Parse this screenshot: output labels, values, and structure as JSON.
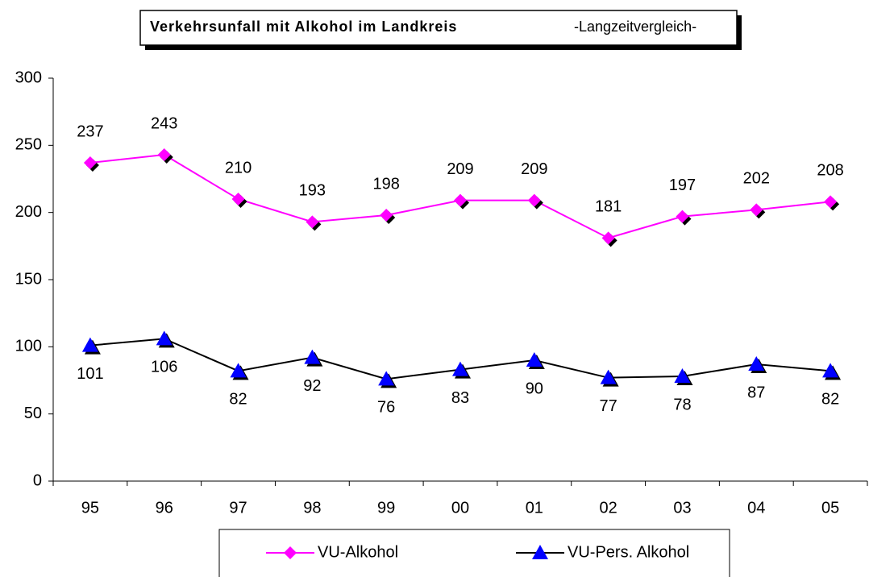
{
  "chart_data": {
    "type": "line",
    "title": "Verkehrsunfall mit Alkohol im Landkreis",
    "subtitle": "-Langzeitvergleich-",
    "categories": [
      "95",
      "96",
      "97",
      "98",
      "99",
      "00",
      "01",
      "02",
      "03",
      "04",
      "05"
    ],
    "series": [
      {
        "name": "VU-Alkohol",
        "color": "#ff00ff",
        "line_color": "#ff00ff",
        "marker": "diamond",
        "values": [
          237,
          243,
          210,
          193,
          198,
          209,
          209,
          181,
          197,
          202,
          208
        ]
      },
      {
        "name": "VU-Pers. Alkohol",
        "color": "#0000ff",
        "line_color": "#000000",
        "marker": "triangle",
        "values": [
          101,
          106,
          82,
          92,
          76,
          83,
          90,
          77,
          78,
          87,
          82
        ]
      }
    ],
    "ylim": [
      0,
      300
    ],
    "yticks": [
      0,
      50,
      100,
      150,
      200,
      250,
      300
    ],
    "legend": "bottom"
  }
}
